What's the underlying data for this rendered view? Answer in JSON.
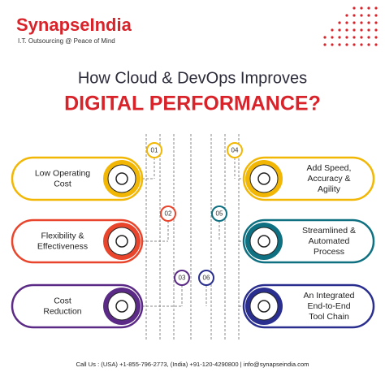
{
  "header": {
    "brand": "SynapseIndia",
    "tagline": "I.T. Outsourcing @ Peace of Mind"
  },
  "title": {
    "line1": "How Cloud & DevOps Improves",
    "line2": "DIGITAL PERFORMANCE?"
  },
  "items": [
    {
      "number": "01",
      "lines": [
        "Low Operating",
        "Cost"
      ]
    },
    {
      "number": "02",
      "lines": [
        "Flexibility &",
        "Effectiveness"
      ]
    },
    {
      "number": "03",
      "lines": [
        "Cost",
        "Reduction"
      ]
    },
    {
      "number": "04",
      "lines": [
        "Add Speed,",
        "Accuracy &",
        "Agility"
      ]
    },
    {
      "number": "05",
      "lines": [
        "Streamlined &",
        "Automated",
        "Process"
      ]
    },
    {
      "number": "06",
      "lines": [
        "An Integrated",
        "End-to-End",
        "Tool Chain"
      ]
    }
  ],
  "footer": "Call Us : (USA) +1-855-796-2773, (India) +91-120-4290800 | info@synapseindia.com"
}
